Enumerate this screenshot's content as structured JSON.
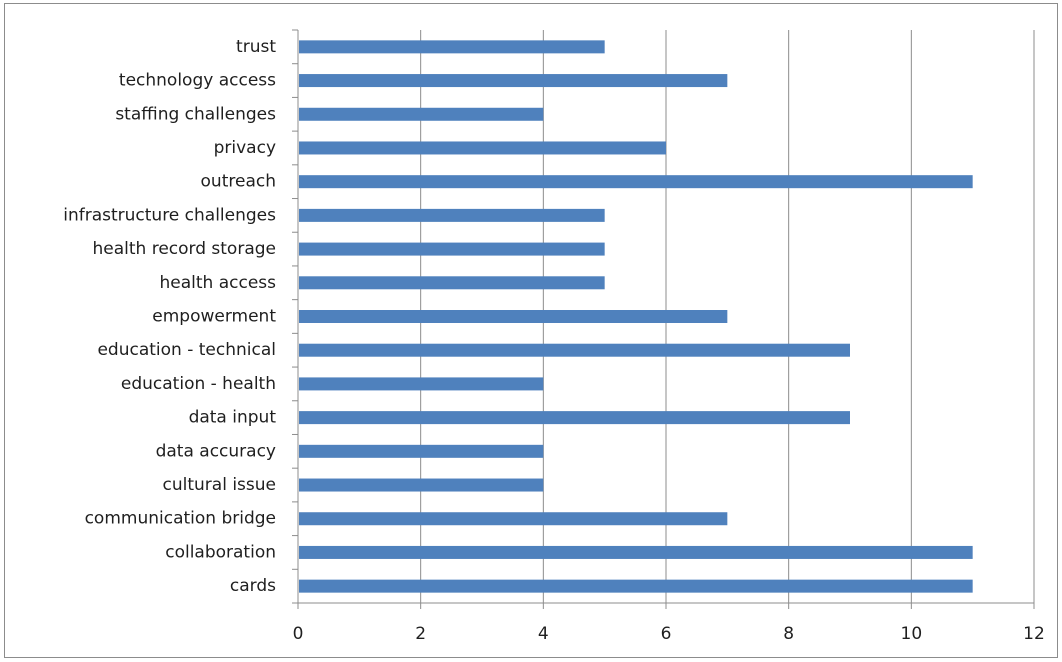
{
  "chart_data": {
    "type": "bar",
    "orientation": "horizontal",
    "categories": [
      "trust",
      "technology access",
      "staffing challenges",
      "privacy",
      "outreach",
      "infrastructure challenges",
      "health record storage",
      "health access",
      "empowerment",
      "education - technical",
      "education - health",
      "data input",
      "data accuracy",
      "cultural issue",
      "communication bridge",
      "collaboration",
      "cards"
    ],
    "values": [
      5,
      7,
      4,
      6,
      11,
      5,
      5,
      5,
      7,
      9,
      4,
      9,
      4,
      4,
      7,
      11,
      11
    ],
    "x_ticks": [
      "0",
      "2",
      "4",
      "6",
      "8",
      "10",
      "12"
    ],
    "xlim": [
      0,
      12
    ],
    "grid": "vertical",
    "bar_color": "#4f81bd",
    "gridline_color": "#8c8c8c",
    "title": "",
    "xlabel": "",
    "ylabel": ""
  }
}
